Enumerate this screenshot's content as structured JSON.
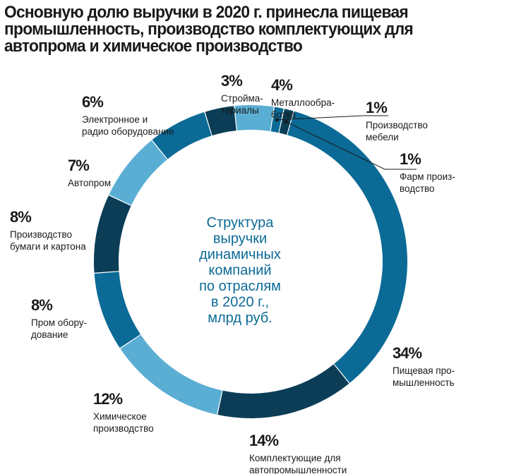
{
  "title": "Основную долю выручки в 2020 г. принесла пищевая промышленность, производство комплектующих для автопрома и химическое производство",
  "colors": {
    "dark": "#0b3d57",
    "mid": "#0b6a96",
    "light": "#5aaed3",
    "text": "#1a1a1a"
  },
  "chart_data": {
    "type": "pie",
    "donut": true,
    "center_text": [
      "Структура",
      "выручки",
      "динамичных",
      "компаний",
      "по отраслям",
      "в 2020 г.,",
      "млрд руб."
    ],
    "units": "%",
    "slices": [
      {
        "label_lines": [
          "Пищевая про-",
          "мышленность"
        ],
        "value": 34,
        "value_label": "34%",
        "color": "#0b6a96"
      },
      {
        "label_lines": [
          "Комплектующие для",
          "автопромышленности"
        ],
        "value": 14,
        "value_label": "14%",
        "color": "#0b3d57"
      },
      {
        "label_lines": [
          "Химическое",
          "производство"
        ],
        "value": 12,
        "value_label": "12%",
        "color": "#5aaed3"
      },
      {
        "label_lines": [
          "Пром обору-",
          "дование"
        ],
        "value": 8,
        "value_label": "8%",
        "color": "#0b6a96"
      },
      {
        "label_lines": [
          "Производство",
          "бумаги и картона"
        ],
        "value": 8,
        "value_label": "8%",
        "color": "#0b3d57"
      },
      {
        "label_lines": [
          "Автопром"
        ],
        "value": 7,
        "value_label": "7%",
        "color": "#5aaed3"
      },
      {
        "label_lines": [
          "Электронное и",
          "радио оборудование"
        ],
        "value": 6,
        "value_label": "6%",
        "color": "#0b6a96"
      },
      {
        "label_lines": [
          "Стройма-",
          "териалы"
        ],
        "value": 3,
        "value_label": "3%",
        "color": "#0b3d57"
      },
      {
        "label_lines": [
          "Металлообра-",
          "ботка"
        ],
        "value": 4,
        "value_label": "4%",
        "color": "#5aaed3"
      },
      {
        "label_lines": [
          "Производство",
          "мебели"
        ],
        "value": 1,
        "value_label": "1%",
        "color": "#0b6a96"
      },
      {
        "label_lines": [
          "Фарм произ-",
          "водство"
        ],
        "value": 1,
        "value_label": "1%",
        "color": "#0b3d57"
      }
    ]
  }
}
